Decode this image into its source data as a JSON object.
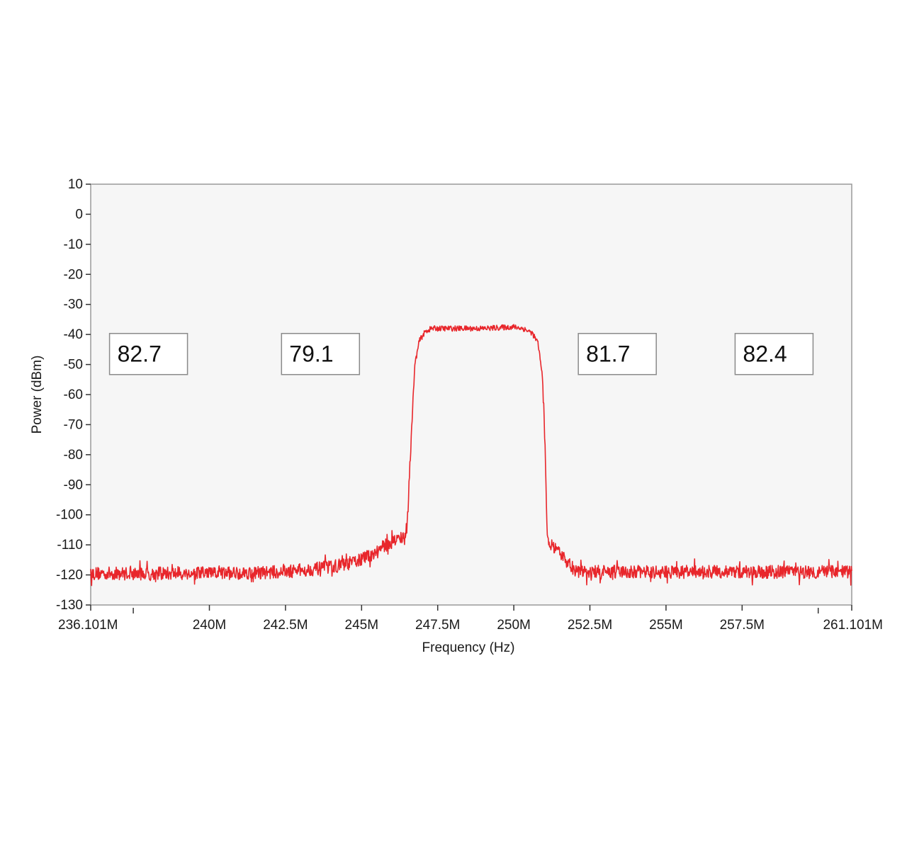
{
  "chart_data": {
    "type": "line",
    "title": "",
    "xlabel": "Frequency (Hz)",
    "ylabel": "Power (dBm)",
    "xlim": [
      236.101,
      261.101
    ],
    "ylim": [
      -130,
      10
    ],
    "x_unit": "MHz",
    "x_ticks": [
      {
        "value": 236.101,
        "label": "236.101M"
      },
      {
        "value": 240,
        "label": "240M"
      },
      {
        "value": 242.5,
        "label": "242.5M"
      },
      {
        "value": 245,
        "label": "245M"
      },
      {
        "value": 247.5,
        "label": "247.5M"
      },
      {
        "value": 250,
        "label": "250M"
      },
      {
        "value": 252.5,
        "label": "252.5M"
      },
      {
        "value": 255,
        "label": "255M"
      },
      {
        "value": 257.5,
        "label": "257.5M"
      },
      {
        "value": 261.101,
        "label": "261.101M"
      }
    ],
    "x_minor_ticks": [
      237.5,
      260
    ],
    "y_ticks": [
      10,
      0,
      -10,
      -20,
      -30,
      -40,
      -50,
      -60,
      -70,
      -80,
      -90,
      -100,
      -110,
      -120,
      -130
    ],
    "grid": false,
    "series": [
      {
        "color": "#e8262b",
        "x": [
          236.101,
          240,
          242.5,
          243.5,
          244.5,
          245.2,
          245.8,
          246.4,
          246.5,
          246.6,
          246.75,
          246.9,
          247.1,
          247.3,
          248,
          249,
          250,
          250.3,
          250.6,
          250.8,
          250.95,
          251.05,
          251.1,
          251.2,
          251.4,
          251.8,
          252,
          252.2,
          253,
          255,
          257.5,
          261.101
        ],
        "y": [
          -119.5,
          -119.5,
          -119,
          -118,
          -116.5,
          -114,
          -110,
          -107,
          -104,
          -80,
          -50,
          -42,
          -39,
          -38,
          -38,
          -38,
          -37.5,
          -38,
          -39.5,
          -43,
          -55,
          -85,
          -108,
          -110,
          -112,
          -116,
          -118.5,
          -119,
          -119,
          -119,
          -119,
          -119
        ]
      }
    ],
    "annotations": [
      {
        "label": "82.7",
        "x": 238.0,
        "y": -46.5
      },
      {
        "label": "79.1",
        "x": 243.65,
        "y": -46.5
      },
      {
        "label": "81.7",
        "x": 253.4,
        "y": -46.5
      },
      {
        "label": "82.4",
        "x": 258.55,
        "y": -46.5
      }
    ]
  }
}
